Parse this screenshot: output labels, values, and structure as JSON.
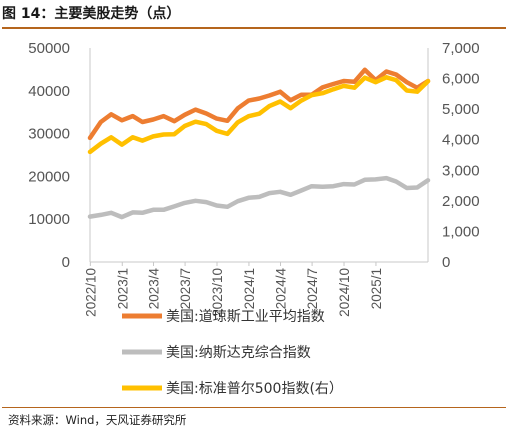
{
  "title": "图 14：主要美股走势（点）",
  "source": "资料来源：Wind，天风证券研究所",
  "chart_data": {
    "type": "line",
    "x_ticks": [
      "2022/10",
      "2023/1",
      "2023/4",
      "2023/7",
      "2023/10",
      "2024/1",
      "2024/4",
      "2024/7",
      "2024/10",
      "2025/1"
    ],
    "x_range": [
      "2022/09/30",
      "2025/05/31"
    ],
    "y_left": {
      "ticks": [
        "0",
        "10000",
        "20000",
        "30000",
        "40000",
        "50000"
      ],
      "range": [
        0,
        50000
      ]
    },
    "y_right": {
      "ticks": [
        "0",
        "1,000",
        "2,000",
        "3,000",
        "4,000",
        "5,000",
        "6,000",
        "7,000"
      ],
      "range": [
        0,
        7000
      ]
    },
    "legend": [
      "美国:道琼斯工业平均指数",
      "美国:纳斯达克综合指数",
      "美国:标准普尔500指数(右）"
    ],
    "colors": [
      "#ed7d31",
      "#bdbdbd",
      "#ffc000"
    ],
    "series": [
      {
        "name": "美国:道琼斯工业平均指数",
        "axis": "left",
        "x": [
          "2022/09/30",
          "2022/10/31",
          "2022/11/30",
          "2022/12/31",
          "2023/01/31",
          "2023/02/28",
          "2023/03/31",
          "2023/04/30",
          "2023/05/31",
          "2023/06/30",
          "2023/07/31",
          "2023/08/31",
          "2023/09/30",
          "2023/10/31",
          "2023/11/30",
          "2023/12/31",
          "2024/01/31",
          "2024/02/29",
          "2024/03/31",
          "2024/04/30",
          "2024/05/31",
          "2024/06/30",
          "2024/07/31",
          "2024/08/31",
          "2024/09/30",
          "2024/10/31",
          "2024/11/30",
          "2024/12/31",
          "2025/01/31",
          "2025/02/28",
          "2025/03/31",
          "2025/04/30",
          "2025/05/31"
        ],
        "y": [
          29000,
          32700,
          34500,
          33100,
          34100,
          32700,
          33300,
          34100,
          32900,
          34400,
          35600,
          34700,
          33500,
          33000,
          35900,
          37700,
          38200,
          38900,
          39800,
          37800,
          39100,
          39100,
          40800,
          41600,
          42300,
          42100,
          44900,
          42500,
          44500,
          43800,
          42000,
          40700,
          42300
        ]
      },
      {
        "name": "美国:纳斯达克综合指数",
        "axis": "left",
        "x": [
          "2022/09/30",
          "2022/10/31",
          "2022/11/30",
          "2022/12/31",
          "2023/01/31",
          "2023/02/28",
          "2023/03/31",
          "2023/04/30",
          "2023/05/31",
          "2023/06/30",
          "2023/07/31",
          "2023/08/31",
          "2023/09/30",
          "2023/10/31",
          "2023/11/30",
          "2023/12/31",
          "2024/01/31",
          "2024/02/29",
          "2024/03/31",
          "2024/04/30",
          "2024/05/31",
          "2024/06/30",
          "2024/07/31",
          "2024/08/31",
          "2024/09/30",
          "2024/10/31",
          "2024/11/30",
          "2024/12/31",
          "2025/01/31",
          "2025/02/28",
          "2025/03/31",
          "2025/04/30",
          "2025/05/31"
        ],
        "y": [
          10600,
          11000,
          11500,
          10500,
          11600,
          11500,
          12200,
          12200,
          13000,
          13800,
          14300,
          14000,
          13200,
          12900,
          14200,
          15000,
          15200,
          16100,
          16400,
          15700,
          16700,
          17700,
          17600,
          17700,
          18200,
          18100,
          19200,
          19300,
          19600,
          18800,
          17300,
          17400,
          19100
        ]
      },
      {
        "name": "美国:标准普尔500指数(右）",
        "axis": "right",
        "x": [
          "2022/09/30",
          "2022/10/31",
          "2022/11/30",
          "2022/12/31",
          "2023/01/31",
          "2023/02/28",
          "2023/03/31",
          "2023/04/30",
          "2023/05/31",
          "2023/06/30",
          "2023/07/31",
          "2023/08/31",
          "2023/09/30",
          "2023/10/31",
          "2023/11/30",
          "2023/12/31",
          "2024/01/31",
          "2024/02/29",
          "2024/03/31",
          "2024/04/30",
          "2024/05/31",
          "2024/06/30",
          "2024/07/31",
          "2024/08/31",
          "2024/09/30",
          "2024/10/31",
          "2024/11/30",
          "2024/12/31",
          "2025/01/31",
          "2025/02/28",
          "2025/03/31",
          "2025/04/30",
          "2025/05/31"
        ],
        "y": [
          3600,
          3870,
          4080,
          3840,
          4080,
          3970,
          4110,
          4170,
          4180,
          4450,
          4590,
          4510,
          4290,
          4190,
          4570,
          4770,
          4850,
          5100,
          5250,
          5030,
          5280,
          5460,
          5520,
          5650,
          5760,
          5700,
          6030,
          5880,
          6040,
          5950,
          5610,
          5570,
          5910
        ]
      }
    ]
  }
}
